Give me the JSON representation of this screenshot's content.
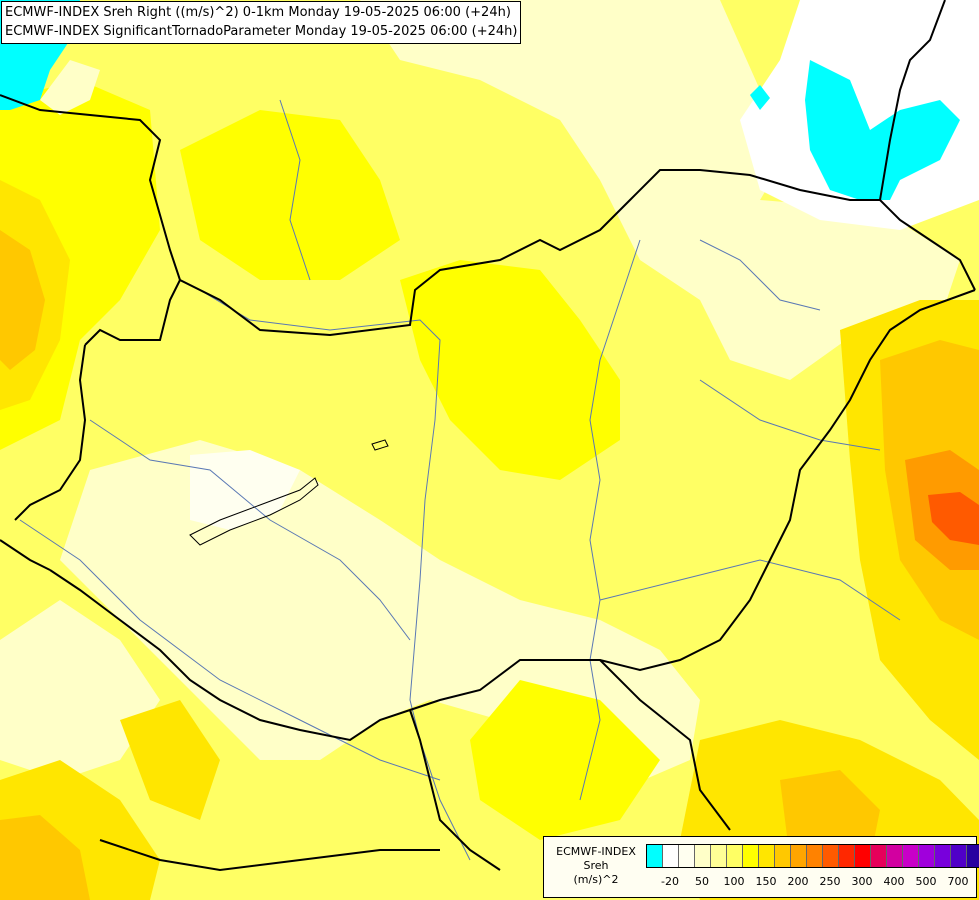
{
  "title": {
    "line1": "ECMWF-INDEX Sreh Right ((m/s)^2) 0-1km Monday 19-05-2025 06:00 (+24h)",
    "line2": "ECMWF-INDEX SignificantTornadoParameter Monday 19-05-2025 06:00 (+24h)"
  },
  "legend": {
    "source": "ECMWF-INDEX",
    "param": "Sreh",
    "unit": "(m/s)^2",
    "colors": [
      "#00ffff",
      "#ffffff",
      "#fffff0",
      "#ffffc8",
      "#ffff96",
      "#ffff64",
      "#ffff00",
      "#ffe600",
      "#ffc800",
      "#ffa500",
      "#ff8200",
      "#ff5a00",
      "#ff2800",
      "#ff0000",
      "#e6005a",
      "#d200a0",
      "#c800c8",
      "#a000dc",
      "#7800dc",
      "#5000c8",
      "#2800a0",
      "#000078"
    ],
    "tick_labels": [
      "-20",
      "50",
      "100",
      "150",
      "200",
      "250",
      "300",
      "400",
      "500",
      "700"
    ]
  },
  "map_colors": {
    "pale": "#fffac8",
    "light": "#ffff96",
    "yellow": "#ffff00",
    "gold": "#ffe600",
    "orange": "#ffc800",
    "deep_orange": "#ff8c00",
    "red_orange": "#ff5a00",
    "cyan": "#00ffff",
    "white": "#ffffff",
    "border": "#000000",
    "river": "#5a78b4"
  }
}
